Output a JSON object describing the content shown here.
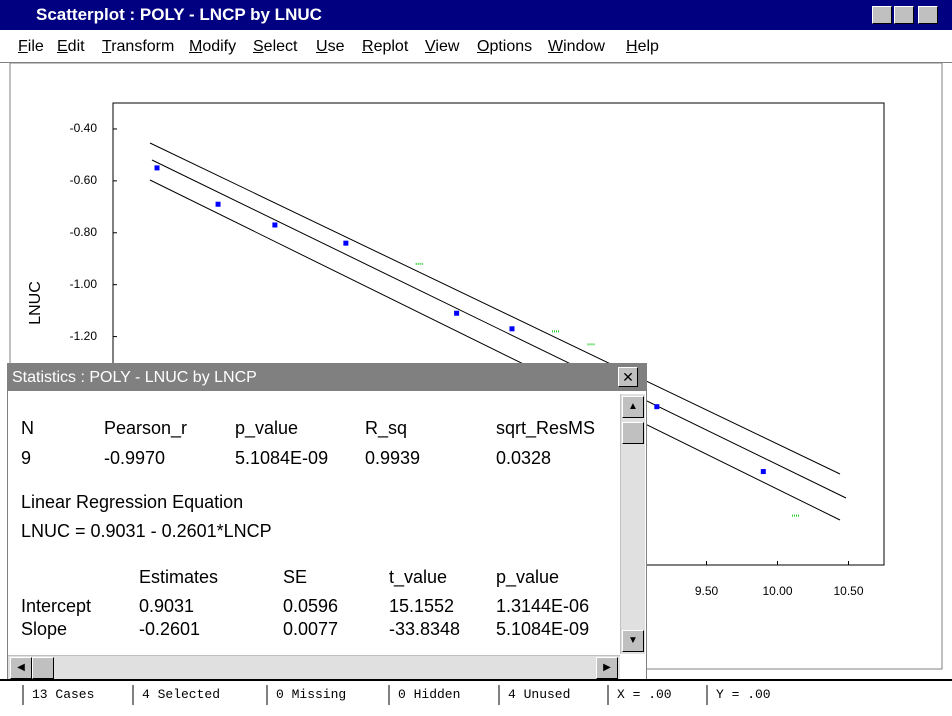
{
  "window": {
    "title": "Scatterplot : POLY - LNCP by LNUC",
    "menu": [
      "File",
      "Edit",
      "Transform",
      "Modify",
      "Select",
      "Use",
      "Replot",
      "View",
      "Options",
      "Window",
      "Help"
    ]
  },
  "plot": {
    "y_label": "LNUC",
    "xlim": [
      5.32,
      10.75
    ],
    "ylim": [
      -2.08,
      -0.3
    ],
    "xticks": [
      {
        "value": 9.5,
        "label": "9.50"
      },
      {
        "value": 10.0,
        "label": "10.00"
      },
      {
        "value": 10.5,
        "label": "10.50"
      }
    ],
    "yticks": [
      {
        "value": -0.4,
        "label": "-0.40"
      },
      {
        "value": -0.6,
        "label": "-0.60"
      },
      {
        "value": -0.8,
        "label": "-0.80"
      },
      {
        "value": -1.0,
        "label": "-1.00"
      },
      {
        "value": -1.2,
        "label": "-1.20"
      }
    ],
    "series": [
      {
        "color": "#0000ff",
        "x": [
          5.63,
          6.06,
          6.46,
          6.96,
          7.74,
          8.13,
          9.15,
          9.9
        ],
        "y": [
          -0.55,
          -0.69,
          -0.77,
          -0.84,
          -1.11,
          -1.17,
          -1.47,
          -1.72
        ]
      },
      {
        "color": "#22cc22",
        "x": [
          7.48,
          8.44,
          8.69,
          10.13
        ],
        "y": [
          -0.92,
          -1.18,
          -1.23,
          -1.89
        ]
      }
    ]
  },
  "statistics": {
    "title": "Statistics : POLY - LNUC by LNCP",
    "summary": {
      "header": [
        "N",
        "Pearson_r",
        "p_value",
        "R_sq",
        "sqrt_ResMS"
      ],
      "row": [
        "9",
        "-0.9970",
        "5.1084E-09",
        "0.9939",
        "0.0328"
      ]
    },
    "equation_title": "Linear Regression Equation",
    "equation": "LNUC = 0.9031 - 0.2601*LNCP",
    "estimates": {
      "header": [
        "Estimates",
        "SE",
        "t_value",
        "p_value"
      ],
      "rows": [
        [
          "Intercept",
          "0.9031",
          "0.0596",
          "15.1552",
          "1.3144E-06"
        ],
        [
          "Slope",
          "-0.2601",
          "0.0077",
          "-33.8348",
          "5.1084E-09"
        ]
      ]
    }
  },
  "status": [
    "13 Cases",
    "4 Selected",
    "0 Missing",
    "0 Hidden",
    "4 Unused",
    "X = .00",
    "Y = .00"
  ]
}
